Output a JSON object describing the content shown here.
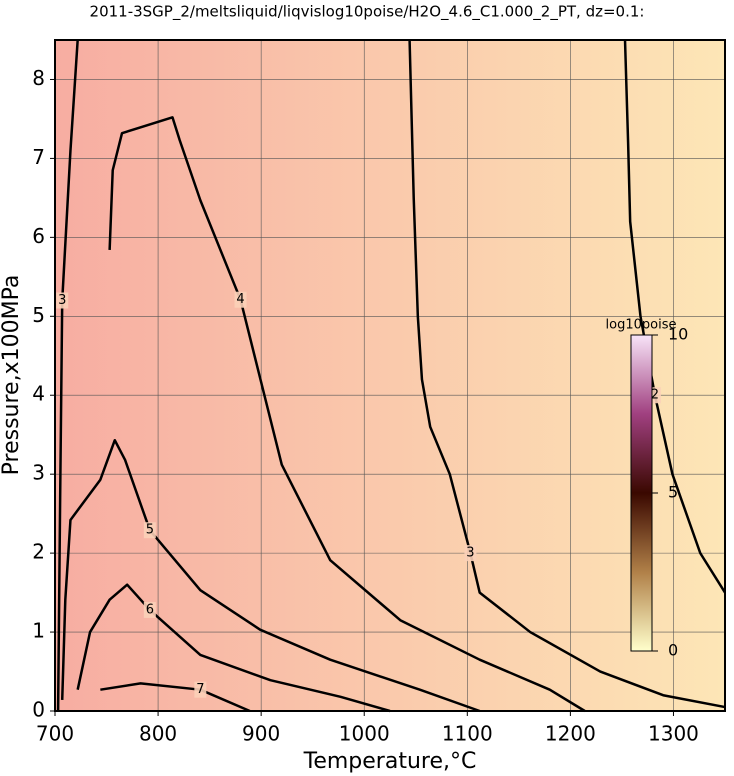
{
  "chart_data": {
    "type": "contour",
    "title": "2011-3SGP_2/meltsliquid/liqvislog10poise/H2O_4.6_C1.000_2_PT, dz=0.1:",
    "xlabel": "Temperature,°C",
    "ylabel": "Pressure,x100MPa",
    "xlim": [
      700,
      1350
    ],
    "ylim": [
      0,
      8.5
    ],
    "xticks": [
      700,
      800,
      900,
      1000,
      1100,
      1200,
      1300
    ],
    "yticks": [
      0,
      1,
      2,
      3,
      4,
      5,
      6,
      7,
      8
    ],
    "grid": true,
    "background_colors": [
      "#f7ada2",
      "#fde6b6"
    ],
    "line_color": "#000000",
    "series": [
      {
        "level": 2,
        "x": [
          1253,
          1256,
          1258,
          1268,
          1282,
          1299,
          1326,
          1350
        ],
        "y": [
          8.5,
          7.2,
          6.2,
          5.0,
          4.0,
          3.0,
          2.0,
          1.5
        ]
      },
      {
        "level": 3,
        "x": [
          1044,
          1048,
          1052,
          1056,
          1064,
          1083,
          1103,
          1112,
          1161,
          1229,
          1290,
          1350
        ],
        "y": [
          8.5,
          6.5,
          5.0,
          4.2,
          3.6,
          3.0,
          2.0,
          1.5,
          1.0,
          0.5,
          0.2,
          0.05
        ]
      },
      {
        "level": 3,
        "x": [
          722,
          715,
          707,
          705,
          703
        ],
        "y": [
          8.5,
          7.1,
          5.2,
          2.7,
          0
        ]
      },
      {
        "level": 4,
        "x": [
          753,
          756,
          765,
          814,
          821,
          841,
          880,
          920,
          967,
          1035,
          1112,
          1180,
          1214
        ],
        "y": [
          5.84,
          6.85,
          7.32,
          7.52,
          7.23,
          6.47,
          5.21,
          3.12,
          1.91,
          1.15,
          0.65,
          0.27,
          0
        ]
      },
      {
        "level": 5,
        "x": [
          707,
          710,
          715,
          744,
          758,
          768,
          792,
          841,
          899,
          967,
          1054,
          1112
        ],
        "y": [
          0.14,
          1.41,
          2.42,
          2.93,
          3.43,
          3.18,
          2.29,
          1.53,
          1.03,
          0.65,
          0.27,
          0
        ]
      },
      {
        "level": 6,
        "x": [
          722,
          734,
          753,
          770,
          792,
          841,
          909,
          977,
          1025
        ],
        "y": [
          0.27,
          1.0,
          1.41,
          1.6,
          1.28,
          0.71,
          0.39,
          0.18,
          0
        ]
      },
      {
        "level": 7,
        "x": [
          744,
          783,
          841,
          889
        ],
        "y": [
          0.27,
          0.35,
          0.27,
          0
        ]
      }
    ],
    "colorbar": {
      "label": "log10poise",
      "lim": [
        0,
        10
      ],
      "ticks": [
        0,
        5,
        10
      ],
      "colors": [
        "#ffffcc",
        "#b08048",
        "#3a0800",
        "#a04080",
        "#f8e4f8"
      ]
    }
  }
}
